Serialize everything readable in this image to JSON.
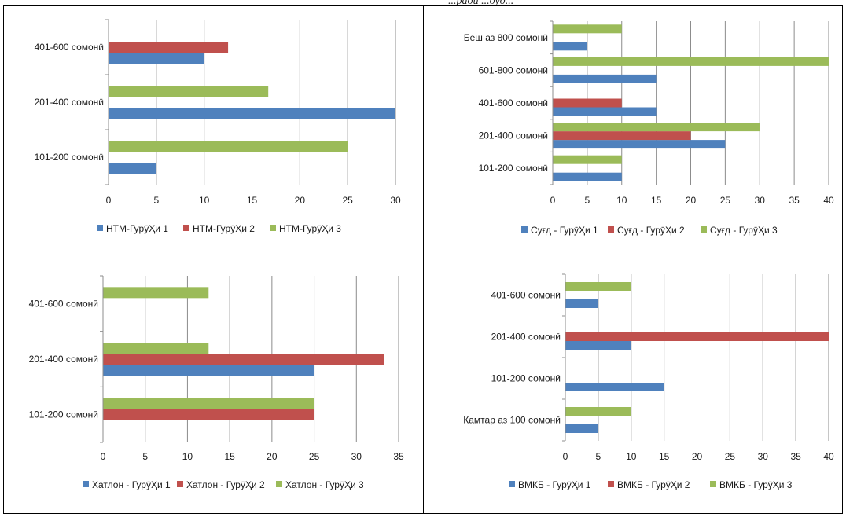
{
  "caption": "...ради ...дуд...",
  "colors": {
    "series1": "#4F81BD",
    "series2": "#C0504D",
    "series3": "#9BBB59",
    "grid": "#8c8c8c"
  },
  "chart_data": [
    {
      "type": "bar",
      "orientation": "horizontal",
      "categories": [
        "101-200 сомонӣ",
        "201-400 сомонӣ",
        "401-600 сомонӣ"
      ],
      "series": [
        {
          "name": "НТМ-ГурӯҲи 1",
          "values": [
            5,
            30,
            10
          ]
        },
        {
          "name": "НТМ-ГурӯҲи 2",
          "values": [
            0,
            0,
            12.5
          ]
        },
        {
          "name": "НТМ-ГурӯҲи 3",
          "values": [
            25,
            16.7,
            0
          ]
        }
      ],
      "xlim": [
        0,
        30
      ],
      "xticks": [
        0,
        5,
        10,
        15,
        20,
        25,
        30
      ],
      "grid": true,
      "legend": "bottom"
    },
    {
      "type": "bar",
      "orientation": "horizontal",
      "categories": [
        "101-200 сомонӣ",
        "201-400 сомонӣ",
        "401-600 сомонӣ",
        "601-800 сомонӣ",
        "Беш аз  800 сомонӣ"
      ],
      "series": [
        {
          "name": "Суғд - ГурӯҲи 1",
          "values": [
            10,
            25,
            15,
            15,
            5
          ]
        },
        {
          "name": "Суғд - ГурӯҲи 2",
          "values": [
            0,
            20,
            10,
            0,
            0
          ]
        },
        {
          "name": "Суғд - ГурӯҲи 3",
          "values": [
            10,
            30,
            0,
            40,
            10
          ]
        }
      ],
      "xlim": [
        0,
        40
      ],
      "xticks": [
        0,
        5,
        10,
        15,
        20,
        25,
        30,
        35,
        40
      ],
      "grid": true,
      "legend": "bottom"
    },
    {
      "type": "bar",
      "orientation": "horizontal",
      "categories": [
        "101-200 сомонӣ",
        "201-400 сомонӣ",
        "401-600 сомонӣ"
      ],
      "series": [
        {
          "name": "Хатлон - ГурӯҲи 1",
          "values": [
            0,
            25,
            0
          ]
        },
        {
          "name": "Хатлон - ГурӯҲи 2",
          "values": [
            25,
            33.3,
            0
          ]
        },
        {
          "name": "Хатлон - ГурӯҲи 3",
          "values": [
            25,
            12.5,
            12.5
          ]
        }
      ],
      "xlim": [
        0,
        35
      ],
      "xticks": [
        0,
        5,
        10,
        15,
        20,
        25,
        30,
        35
      ],
      "grid": true,
      "legend": "bottom"
    },
    {
      "type": "bar",
      "orientation": "horizontal",
      "categories": [
        "Камтар аз 100 сомонӣ",
        "101-200 сомонӣ",
        "201-400 сомонӣ",
        "401-600 сомонӣ"
      ],
      "series": [
        {
          "name": "ВМКБ - ГурӯҲи 1",
          "values": [
            5,
            15,
            10,
            5
          ]
        },
        {
          "name": "ВМКБ - ГурӯҲи 2",
          "values": [
            0,
            0,
            40,
            0
          ]
        },
        {
          "name": "ВМКБ - ГурӯҲи 3",
          "values": [
            10,
            0,
            0,
            10
          ]
        }
      ],
      "xlim": [
        0,
        40
      ],
      "xticks": [
        0,
        5,
        10,
        15,
        20,
        25,
        30,
        35,
        40
      ],
      "grid": true,
      "legend": "bottom"
    }
  ]
}
